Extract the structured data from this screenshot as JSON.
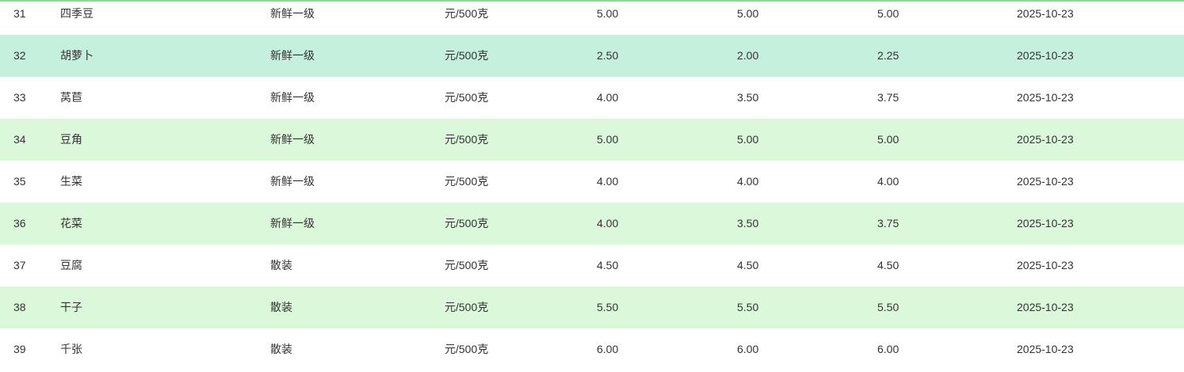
{
  "table": {
    "rows": [
      [
        "31",
        "四季豆",
        "新鲜一级",
        "元/500克",
        "5.00",
        "5.00",
        "5.00",
        "2025-10-23"
      ],
      [
        "32",
        "胡萝卜",
        "新鲜一级",
        "元/500克",
        "2.50",
        "2.00",
        "2.25",
        "2025-10-23"
      ],
      [
        "33",
        "莴苣",
        "新鲜一级",
        "元/500克",
        "4.00",
        "3.50",
        "3.75",
        "2025-10-23"
      ],
      [
        "34",
        "豆角",
        "新鲜一级",
        "元/500克",
        "5.00",
        "5.00",
        "5.00",
        "2025-10-23"
      ],
      [
        "35",
        "生菜",
        "新鲜一级",
        "元/500克",
        "4.00",
        "4.00",
        "4.00",
        "2025-10-23"
      ],
      [
        "36",
        "花菜",
        "新鲜一级",
        "元/500克",
        "4.00",
        "3.50",
        "3.75",
        "2025-10-23"
      ],
      [
        "37",
        "豆腐",
        "散装",
        "元/500克",
        "4.50",
        "4.50",
        "4.50",
        "2025-10-23"
      ],
      [
        "38",
        "干子",
        "散装",
        "元/500克",
        "5.50",
        "5.50",
        "5.50",
        "2025-10-23"
      ],
      [
        "39",
        "千张",
        "散装",
        "元/500克",
        "6.00",
        "6.00",
        "6.00",
        "2025-10-23"
      ]
    ],
    "hover_row_index": 1,
    "colors": {
      "even_row": "#dbf9da",
      "hover_row": "#c4f0dd",
      "top_border": "#8edb8e"
    }
  }
}
